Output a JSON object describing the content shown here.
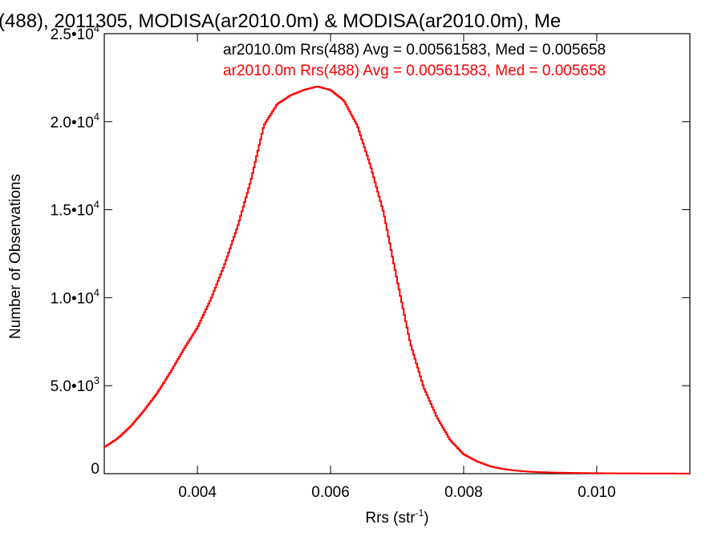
{
  "chart_data": {
    "type": "line",
    "title": "(488), 2011305, MODISA(ar2010.0m) & MODISA(ar2010.0m), Me",
    "xlabel": "Rrs (str",
    "xlabel_sup": "-1",
    "xlabel_tail": ")",
    "ylabel": "Number of Observations",
    "xlim": [
      0.0026,
      0.0114
    ],
    "ylim": [
      0,
      25000
    ],
    "grid": false,
    "x_ticks": [
      {
        "value": 0.004,
        "label": "0.004"
      },
      {
        "value": 0.006,
        "label": "0.006"
      },
      {
        "value": 0.008,
        "label": "0.008"
      },
      {
        "value": 0.01,
        "label": "0.010"
      }
    ],
    "y_ticks": [
      {
        "value": 0,
        "label": "0",
        "sup": ""
      },
      {
        "value": 5000,
        "label": "5.0•10",
        "sup": "3"
      },
      {
        "value": 10000,
        "label": "1.0•10",
        "sup": "4"
      },
      {
        "value": 15000,
        "label": "1.5•10",
        "sup": "4"
      },
      {
        "value": 20000,
        "label": "2.0•10",
        "sup": "4"
      },
      {
        "value": 25000,
        "label": "2.5•10",
        "sup": "4"
      }
    ],
    "legend_position": "top-right",
    "legend": [
      {
        "text": "ar2010.0m Rrs(488) Avg = 0.00561583, Med = 0.005658",
        "color": "#000000"
      },
      {
        "text": "ar2010.0m Rrs(488) Avg = 0.00561583, Med = 0.005658",
        "color": "#ff0000"
      }
    ],
    "series": [
      {
        "color": "#ff0000",
        "x": [
          0.0026,
          0.0028,
          0.003,
          0.0032,
          0.0034,
          0.0036,
          0.0038,
          0.004,
          0.0042,
          0.0044,
          0.0046,
          0.0048,
          0.005,
          0.0052,
          0.0054,
          0.0056,
          0.0058,
          0.006,
          0.0062,
          0.0064,
          0.0066,
          0.0068,
          0.007,
          0.0072,
          0.0074,
          0.0076,
          0.0078,
          0.008,
          0.0082,
          0.0084,
          0.0086,
          0.0088,
          0.009,
          0.0092,
          0.0094,
          0.0096,
          0.0098,
          0.01,
          0.0102,
          0.0104,
          0.0106,
          0.0108,
          0.011,
          0.0112,
          0.0114
        ],
        "values": [
          1500,
          2000,
          2700,
          3600,
          4600,
          5800,
          7100,
          8300,
          9900,
          11800,
          14000,
          16600,
          19800,
          21000,
          21500,
          21800,
          22000,
          21800,
          21200,
          19800,
          17500,
          14800,
          11000,
          7400,
          4900,
          3200,
          1900,
          1100,
          700,
          420,
          260,
          170,
          110,
          80,
          60,
          45,
          35,
          28,
          22,
          18,
          15,
          12,
          10,
          8,
          6
        ]
      }
    ]
  }
}
